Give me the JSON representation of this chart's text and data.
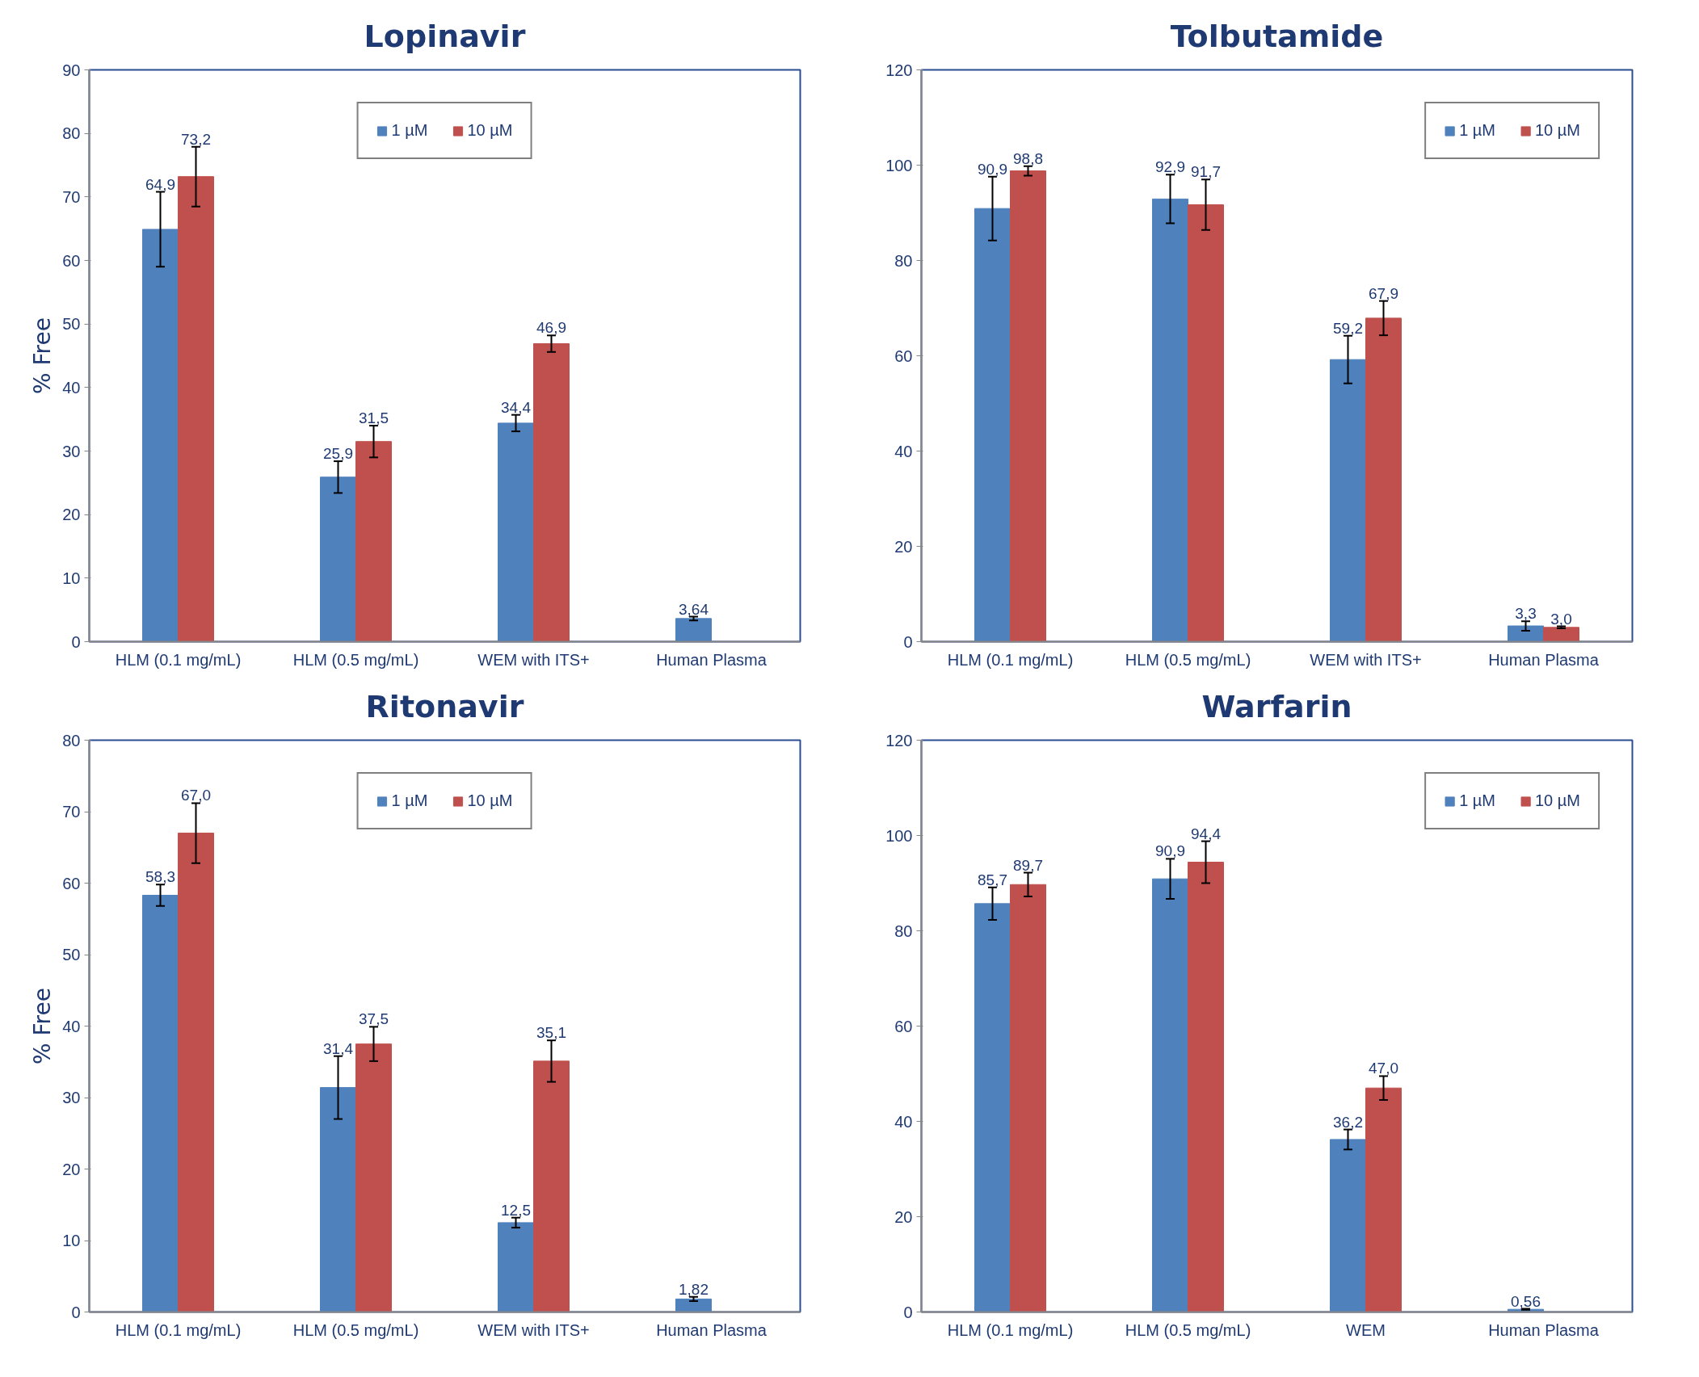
{
  "chart_data": [
    {
      "type": "bar",
      "title": "Lopinavir",
      "ylabel": "% Free",
      "categories": [
        "HLM (0.1 mg/mL)",
        "HLM (0.5 mg/mL)",
        "WEM with ITS+",
        "Human Plasma"
      ],
      "ylim": [
        0,
        90
      ],
      "yticks": [
        0,
        10,
        20,
        30,
        40,
        50,
        60,
        70,
        80,
        90
      ],
      "grid": false,
      "legend": "top",
      "series": [
        {
          "name": "1 µM",
          "color": "#4f81bd",
          "values": [
            64.9,
            25.9,
            34.4,
            3.64
          ],
          "errors": [
            5.9,
            2.5,
            1.3,
            0.3
          ],
          "value_labels": [
            "64,9",
            "25,9",
            "34,4",
            "3,64"
          ]
        },
        {
          "name": "10 µM",
          "color": "#c0504d",
          "values": [
            73.2,
            31.5,
            46.9,
            null
          ],
          "errors": [
            4.7,
            2.5,
            1.3,
            null
          ],
          "value_labels": [
            "73,2",
            "31,5",
            "46,9",
            null
          ]
        }
      ]
    },
    {
      "type": "bar",
      "title": "Tolbutamide",
      "categories": [
        "HLM (0.1 mg/mL)",
        "HLM (0.5 mg/mL)",
        "WEM with ITS+",
        "Human Plasma"
      ],
      "ylim": [
        0,
        120
      ],
      "yticks": [
        0,
        20,
        40,
        60,
        80,
        100,
        120
      ],
      "grid": false,
      "legend": "top right",
      "series": [
        {
          "name": "1 µM",
          "color": "#4f81bd",
          "values": [
            90.9,
            92.9,
            59.2,
            3.3
          ],
          "errors": [
            6.7,
            5.1,
            5.0,
            1.0
          ],
          "value_labels": [
            "90,9",
            "92,9",
            "59,2",
            "3,3"
          ]
        },
        {
          "name": "10 µM",
          "color": "#c0504d",
          "values": [
            98.8,
            91.7,
            67.9,
            3.0
          ],
          "errors": [
            1.0,
            5.3,
            3.6,
            0.2
          ],
          "value_labels": [
            "98,8",
            "91,7",
            "67,9",
            "3,0"
          ]
        }
      ]
    },
    {
      "type": "bar",
      "title": "Ritonavir",
      "ylabel": "% Free",
      "categories": [
        "HLM (0.1 mg/mL)",
        "HLM (0.5 mg/mL)",
        "WEM with ITS+",
        "Human Plasma"
      ],
      "ylim": [
        0,
        80
      ],
      "yticks": [
        0,
        10,
        20,
        30,
        40,
        50,
        60,
        70,
        80
      ],
      "grid": false,
      "legend": "top",
      "series": [
        {
          "name": "1 µM",
          "color": "#4f81bd",
          "values": [
            58.3,
            31.4,
            12.5,
            1.82
          ],
          "errors": [
            1.5,
            4.4,
            0.7,
            0.3
          ],
          "value_labels": [
            "58,3",
            "31,4",
            "12,5",
            "1,82"
          ]
        },
        {
          "name": "10 µM",
          "color": "#c0504d",
          "values": [
            67.0,
            37.5,
            35.1,
            null
          ],
          "errors": [
            4.2,
            2.4,
            2.9,
            null
          ],
          "value_labels": [
            "67,0",
            "37,5",
            "35,1",
            null
          ]
        }
      ]
    },
    {
      "type": "bar",
      "title": "Warfarin",
      "categories": [
        "HLM (0.1 mg/mL)",
        "HLM (0.5 mg/mL)",
        "WEM",
        "Human Plasma"
      ],
      "ylim": [
        0,
        120
      ],
      "yticks": [
        0,
        20,
        40,
        60,
        80,
        100,
        120
      ],
      "grid": false,
      "legend": "top right",
      "series": [
        {
          "name": "1 µM",
          "color": "#4f81bd",
          "values": [
            85.7,
            90.9,
            36.2,
            0.56
          ],
          "errors": [
            3.4,
            4.2,
            2.1,
            0.1
          ],
          "value_labels": [
            "85,7",
            "90,9",
            "36,2",
            "0,56"
          ]
        },
        {
          "name": "10 µM",
          "color": "#c0504d",
          "values": [
            89.7,
            94.4,
            47.0,
            null
          ],
          "errors": [
            2.5,
            4.4,
            2.5,
            null
          ],
          "value_labels": [
            "89,7",
            "94,4",
            "47,0",
            null
          ]
        }
      ]
    }
  ]
}
